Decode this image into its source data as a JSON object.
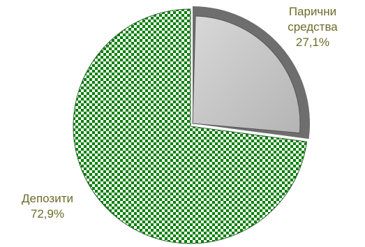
{
  "chart_data": {
    "type": "pie",
    "slices": [
      {
        "label_lines": [
          "Парични",
          "средства"
        ],
        "value": 27.1,
        "value_label": "27,1%",
        "color": "#c0c0c0",
        "pattern": "solid"
      },
      {
        "label_lines": [
          "Депозити"
        ],
        "value": 72.9,
        "value_label": "72,9%",
        "color": "#008000",
        "pattern": "checkerboard"
      }
    ],
    "start_angle_deg": 0,
    "direction": "clockwise",
    "label_color": "#6b6b2a",
    "exploded_slice": 0
  }
}
